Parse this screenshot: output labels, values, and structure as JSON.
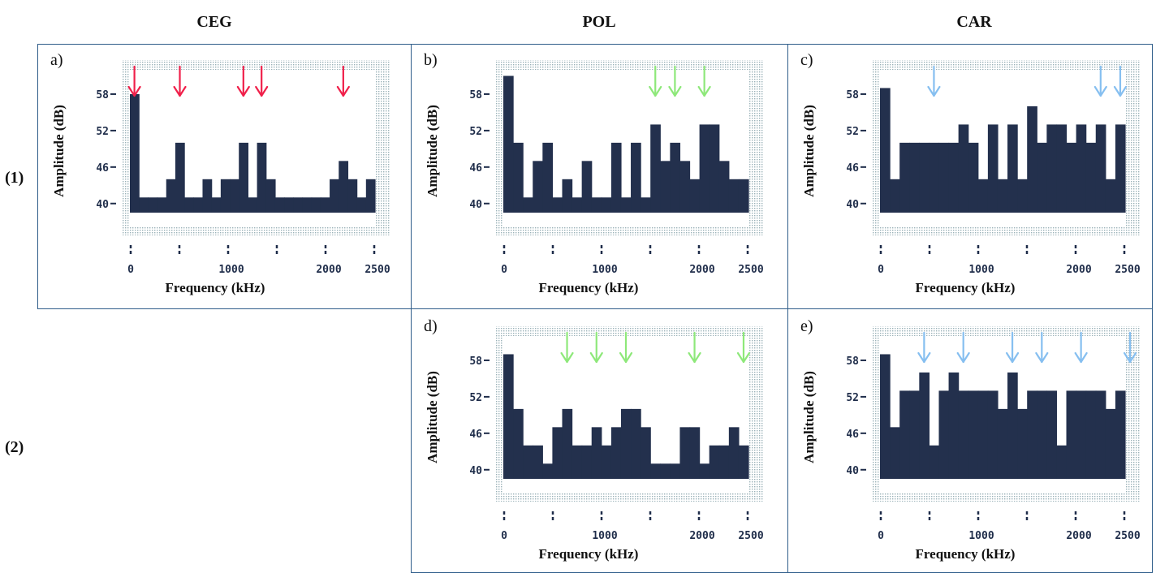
{
  "columns": [
    "CEG",
    "POL",
    "CAR"
  ],
  "rows": [
    "(1)",
    "(2)"
  ],
  "colors": {
    "bar": "#23304d",
    "frame_dots": "#9ab1b8",
    "red_arrow": "#f0204a",
    "green_arrow": "#8ee87a",
    "blue_arrow": "#86bff0",
    "border": "#2f5d8a"
  },
  "chart_data": [
    {
      "panel": "a)",
      "type": "bar",
      "xlabel": "Frequency (kHz)",
      "ylabel": "Amplitude (dB)",
      "xticks": [
        "0",
        "1000",
        "2000",
        "2500"
      ],
      "yticks": [
        "58",
        "52",
        "46",
        "40"
      ],
      "ylim": [
        38.5,
        62
      ],
      "values": [
        58,
        41,
        41,
        41,
        44,
        50,
        41,
        41,
        44,
        41,
        44,
        44,
        50,
        41,
        50,
        44,
        41,
        41,
        41,
        41,
        41,
        41,
        44,
        47,
        44,
        41,
        44
      ],
      "arrow_color": "red",
      "arrows": [
        0,
        5,
        12,
        14,
        23
      ]
    },
    {
      "panel": "b)",
      "type": "bar",
      "xlabel": "Frequency (kHz)",
      "ylabel": "Amplitude (dB)",
      "xticks": [
        "0",
        "1000",
        "2000",
        "2500"
      ],
      "yticks": [
        "58",
        "52",
        "46",
        "40"
      ],
      "ylim": [
        38.5,
        62
      ],
      "values": [
        61,
        50,
        41,
        47,
        50,
        41,
        44,
        41,
        47,
        41,
        41,
        50,
        41,
        50,
        41,
        53,
        47,
        50,
        47,
        44,
        53,
        53,
        47,
        44,
        44
      ],
      "arrow_color": "green",
      "arrows": [
        15,
        17,
        20
      ]
    },
    {
      "panel": "c)",
      "type": "bar",
      "xlabel": "Frequency (kHz)",
      "ylabel": "Amplitude (dB)",
      "xticks": [
        "0",
        "1000",
        "2000",
        "2500"
      ],
      "yticks": [
        "58",
        "52",
        "46",
        "40"
      ],
      "ylim": [
        38.5,
        62
      ],
      "values": [
        59,
        44,
        50,
        50,
        50,
        50,
        50,
        50,
        53,
        50,
        44,
        53,
        44,
        53,
        44,
        56,
        50,
        53,
        53,
        50,
        53,
        50,
        53,
        44,
        53
      ],
      "arrow_color": "blue",
      "arrows": [
        5,
        22,
        24
      ]
    },
    {
      "panel": "d)",
      "type": "bar",
      "xlabel": "Frequency (kHz)",
      "ylabel": "Amplitude (dB)",
      "xticks": [
        "0",
        "1000",
        "2000",
        "2500"
      ],
      "yticks": [
        "58",
        "52",
        "46",
        "40"
      ],
      "ylim": [
        38.5,
        62
      ],
      "values": [
        59,
        50,
        44,
        44,
        41,
        47,
        50,
        44,
        44,
        47,
        44,
        47,
        50,
        50,
        47,
        41,
        41,
        41,
        47,
        47,
        41,
        44,
        44,
        47,
        44
      ],
      "arrow_color": "green",
      "arrows": [
        6,
        9,
        12,
        19,
        24
      ]
    },
    {
      "panel": "e)",
      "type": "bar",
      "xlabel": "Frequency (kHz)",
      "ylabel": "Amplitude (dB)",
      "xticks": [
        "0",
        "1000",
        "2000",
        "2500"
      ],
      "yticks": [
        "58",
        "52",
        "46",
        "40"
      ],
      "ylim": [
        38.5,
        62
      ],
      "values": [
        59,
        47,
        53,
        53,
        56,
        44,
        53,
        56,
        53,
        53,
        53,
        53,
        50,
        56,
        50,
        53,
        53,
        53,
        44,
        53,
        53,
        53,
        53,
        50,
        53
      ],
      "arrow_color": "blue",
      "arrows": [
        4,
        8,
        13,
        16,
        20,
        25
      ]
    }
  ]
}
